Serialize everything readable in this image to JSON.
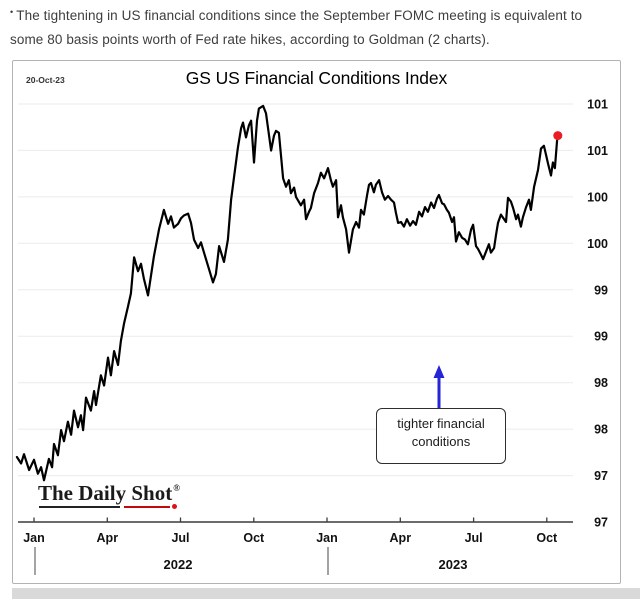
{
  "page": {
    "bullet": "•",
    "intro_text": "The tightening in US financial conditions since the September FOMC meeting is equivalent to some 80 basis points worth of Fed rate hikes, according to Goldman (2 charts)."
  },
  "chart": {
    "date_stamp": "20-Oct-23",
    "title": "GS US Financial Conditions Index",
    "annotation_line1": "tighter financial",
    "annotation_line2": "conditions",
    "logo_text": "The Daily Shot",
    "logo_reg": "®",
    "colors": {
      "line": "#000000",
      "latest_dot": "#ec1c24",
      "arrow": "#2424d9",
      "grid": "#ebebeb",
      "axis": "#3c3c3c"
    }
  },
  "chart_data": {
    "type": "line",
    "title": "GS US Financial Conditions Index",
    "as_of": "20-Oct-23",
    "x_unit": "months since Jan-2022",
    "x_tick_months": [
      0,
      3,
      6,
      9,
      12,
      15,
      18,
      21
    ],
    "x_tick_labels": [
      "Jan",
      "Apr",
      "Jul",
      "Oct",
      "Jan",
      "Apr",
      "Jul",
      "Oct"
    ],
    "year_labels": [
      "2022",
      "2023"
    ],
    "y_tick_labels": [
      "101",
      "101",
      "100",
      "100",
      "99",
      "99",
      "98",
      "98",
      "97",
      "97"
    ],
    "y_grid_values": [
      101.25,
      100.75,
      100.25,
      99.75,
      99.25,
      98.75,
      98.25,
      97.75,
      97.25,
      96.75
    ],
    "ylim": [
      96.75,
      101.25
    ],
    "grid": "horizontal only",
    "legend": "none",
    "annotation": "tighter financial conditions",
    "end_marker": "red dot at latest value",
    "end_dot": {
      "t": 21.45,
      "v": 100.91
    },
    "series": [
      {
        "name": "GS US Financial Conditions Index",
        "points": [
          [
            -0.7,
            97.45
          ],
          [
            -0.53,
            97.38
          ],
          [
            -0.41,
            97.48
          ],
          [
            -0.2,
            97.31
          ],
          [
            0.0,
            97.42
          ],
          [
            0.16,
            97.27
          ],
          [
            0.29,
            97.34
          ],
          [
            0.41,
            97.2
          ],
          [
            0.61,
            97.43
          ],
          [
            0.74,
            97.34
          ],
          [
            0.82,
            97.59
          ],
          [
            0.98,
            97.47
          ],
          [
            1.11,
            97.74
          ],
          [
            1.23,
            97.62
          ],
          [
            1.39,
            97.83
          ],
          [
            1.52,
            97.69
          ],
          [
            1.64,
            97.95
          ],
          [
            1.8,
            97.77
          ],
          [
            1.92,
            97.9
          ],
          [
            2.01,
            97.74
          ],
          [
            2.13,
            98.09
          ],
          [
            2.33,
            97.95
          ],
          [
            2.46,
            98.16
          ],
          [
            2.54,
            98.01
          ],
          [
            2.74,
            98.33
          ],
          [
            2.87,
            98.22
          ],
          [
            3.03,
            98.52
          ],
          [
            3.15,
            98.33
          ],
          [
            3.28,
            98.59
          ],
          [
            3.44,
            98.44
          ],
          [
            3.56,
            98.7
          ],
          [
            3.69,
            98.89
          ],
          [
            3.85,
            99.07
          ],
          [
            3.97,
            99.21
          ],
          [
            4.1,
            99.6
          ],
          [
            4.26,
            99.45
          ],
          [
            4.38,
            99.53
          ],
          [
            4.5,
            99.37
          ],
          [
            4.67,
            99.19
          ],
          [
            4.91,
            99.61
          ],
          [
            5.12,
            99.9
          ],
          [
            5.32,
            100.11
          ],
          [
            5.49,
            99.96
          ],
          [
            5.61,
            100.04
          ],
          [
            5.73,
            99.92
          ],
          [
            5.9,
            99.96
          ],
          [
            6.02,
            100.02
          ],
          [
            6.14,
            100.05
          ],
          [
            6.31,
            100.07
          ],
          [
            6.43,
            99.97
          ],
          [
            6.55,
            99.79
          ],
          [
            6.72,
            99.7
          ],
          [
            6.84,
            99.76
          ],
          [
            6.96,
            99.65
          ],
          [
            7.17,
            99.47
          ],
          [
            7.33,
            99.33
          ],
          [
            7.45,
            99.42
          ],
          [
            7.58,
            99.72
          ],
          [
            7.78,
            99.55
          ],
          [
            7.94,
            99.79
          ],
          [
            8.07,
            100.22
          ],
          [
            8.19,
            100.46
          ],
          [
            8.35,
            100.78
          ],
          [
            8.48,
            100.99
          ],
          [
            8.56,
            101.05
          ],
          [
            8.68,
            100.89
          ],
          [
            8.8,
            101.02
          ],
          [
            8.89,
            101.07
          ],
          [
            9.01,
            100.62
          ],
          [
            9.13,
            101.07
          ],
          [
            9.21,
            101.2
          ],
          [
            9.38,
            101.23
          ],
          [
            9.5,
            101.15
          ],
          [
            9.71,
            100.75
          ],
          [
            9.83,
            100.91
          ],
          [
            9.91,
            100.96
          ],
          [
            10.03,
            100.94
          ],
          [
            10.2,
            100.45
          ],
          [
            10.32,
            100.36
          ],
          [
            10.44,
            100.43
          ],
          [
            10.52,
            100.29
          ],
          [
            10.65,
            100.35
          ],
          [
            10.73,
            100.25
          ],
          [
            10.93,
            100.16
          ],
          [
            11.06,
            100.22
          ],
          [
            11.14,
            100.01
          ],
          [
            11.26,
            100.09
          ],
          [
            11.34,
            100.13
          ],
          [
            11.47,
            100.29
          ],
          [
            11.63,
            100.4
          ],
          [
            11.75,
            100.51
          ],
          [
            11.88,
            100.45
          ],
          [
            12.04,
            100.56
          ],
          [
            12.16,
            100.43
          ],
          [
            12.24,
            100.36
          ],
          [
            12.37,
            100.43
          ],
          [
            12.45,
            100.03
          ],
          [
            12.57,
            100.16
          ],
          [
            12.65,
            100.03
          ],
          [
            12.78,
            99.9
          ],
          [
            12.9,
            99.65
          ],
          [
            13.06,
            99.9
          ],
          [
            13.19,
            99.98
          ],
          [
            13.31,
            99.92
          ],
          [
            13.39,
            100.11
          ],
          [
            13.51,
            100.06
          ],
          [
            13.64,
            100.27
          ],
          [
            13.72,
            100.38
          ],
          [
            13.8,
            100.4
          ],
          [
            13.92,
            100.3
          ],
          [
            14.0,
            100.38
          ],
          [
            14.13,
            100.43
          ],
          [
            14.25,
            100.3
          ],
          [
            14.37,
            100.22
          ],
          [
            14.5,
            100.26
          ],
          [
            14.62,
            100.22
          ],
          [
            14.74,
            100.19
          ],
          [
            14.82,
            100.08
          ],
          [
            14.91,
            99.97
          ],
          [
            15.03,
            99.98
          ],
          [
            15.15,
            99.93
          ],
          [
            15.27,
            100.01
          ],
          [
            15.4,
            99.94
          ],
          [
            15.52,
            99.99
          ],
          [
            15.64,
            99.95
          ],
          [
            15.77,
            100.09
          ],
          [
            15.89,
            100.04
          ],
          [
            16.01,
            100.14
          ],
          [
            16.13,
            100.09
          ],
          [
            16.26,
            100.19
          ],
          [
            16.38,
            100.13
          ],
          [
            16.5,
            100.23
          ],
          [
            16.58,
            100.27
          ],
          [
            16.71,
            100.18
          ],
          [
            16.79,
            100.17
          ],
          [
            16.91,
            100.11
          ],
          [
            16.99,
            100.08
          ],
          [
            17.12,
            99.98
          ],
          [
            17.2,
            100.03
          ],
          [
            17.28,
            99.77
          ],
          [
            17.4,
            99.87
          ],
          [
            17.53,
            99.81
          ],
          [
            17.65,
            99.79
          ],
          [
            17.77,
            99.74
          ],
          [
            17.9,
            99.9
          ],
          [
            17.98,
            99.95
          ],
          [
            18.1,
            99.72
          ],
          [
            18.18,
            99.69
          ],
          [
            18.3,
            99.63
          ],
          [
            18.39,
            99.58
          ],
          [
            18.51,
            99.66
          ],
          [
            18.63,
            99.74
          ],
          [
            18.71,
            99.65
          ],
          [
            18.84,
            99.7
          ],
          [
            18.92,
            99.84
          ],
          [
            19.0,
            99.97
          ],
          [
            19.12,
            100.06
          ],
          [
            19.25,
            100.01
          ],
          [
            19.33,
            99.98
          ],
          [
            19.41,
            100.24
          ],
          [
            19.53,
            100.2
          ],
          [
            19.62,
            100.13
          ],
          [
            19.74,
            100.01
          ],
          [
            19.82,
            100.06
          ],
          [
            19.94,
            99.93
          ],
          [
            20.02,
            100.03
          ],
          [
            20.15,
            100.14
          ],
          [
            20.27,
            100.22
          ],
          [
            20.35,
            100.11
          ],
          [
            20.48,
            100.36
          ],
          [
            20.64,
            100.54
          ],
          [
            20.76,
            100.77
          ],
          [
            20.88,
            100.8
          ],
          [
            20.97,
            100.7
          ],
          [
            21.05,
            100.61
          ],
          [
            21.17,
            100.48
          ],
          [
            21.25,
            100.62
          ],
          [
            21.33,
            100.56
          ],
          [
            21.42,
            100.86
          ]
        ]
      }
    ]
  }
}
